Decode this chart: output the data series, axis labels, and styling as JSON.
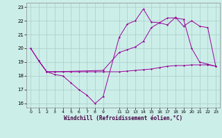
{
  "title": "",
  "xlabel": "Windchill (Refroidissement éolien,°C)",
  "bg_color": "#cceee8",
  "grid_color": "#aacccc",
  "line_color": "#990099",
  "xlim": [
    -0.5,
    23.5
  ],
  "ylim": [
    15.7,
    23.3
  ],
  "yticks": [
    16,
    17,
    18,
    19,
    20,
    21,
    22,
    23
  ],
  "xticks": [
    0,
    1,
    2,
    3,
    4,
    5,
    6,
    7,
    8,
    9,
    11,
    12,
    13,
    14,
    15,
    16,
    17,
    18,
    19,
    20,
    21,
    22,
    23
  ],
  "xticklabels": [
    "0",
    "1",
    "2",
    "3",
    "4",
    "5",
    "6",
    "7",
    "8",
    "9",
    "11",
    "12",
    "13",
    "14",
    "15",
    "16",
    "17",
    "18",
    "19",
    "20",
    "21",
    "22",
    "23"
  ],
  "line1_x": [
    0,
    1,
    2,
    3,
    4,
    5,
    6,
    7,
    8,
    9,
    11,
    12,
    13,
    14,
    15,
    16,
    17,
    18,
    19,
    20,
    21,
    22,
    23
  ],
  "line1_y": [
    20.0,
    19.1,
    18.3,
    18.1,
    18.0,
    17.5,
    17.0,
    16.6,
    16.0,
    16.5,
    20.8,
    21.75,
    22.0,
    22.85,
    21.9,
    21.85,
    22.2,
    22.2,
    22.1,
    20.0,
    19.0,
    18.85,
    18.7
  ],
  "line2_x": [
    0,
    1,
    2,
    3,
    9,
    11,
    12,
    13,
    14,
    15,
    16,
    17,
    18,
    19,
    20,
    21,
    22,
    23
  ],
  "line2_y": [
    20.0,
    19.1,
    18.3,
    18.3,
    18.4,
    19.7,
    19.9,
    20.1,
    20.5,
    21.5,
    21.85,
    21.7,
    22.25,
    21.6,
    22.0,
    21.6,
    21.5,
    18.7
  ],
  "line3_x": [
    1,
    2,
    3,
    4,
    5,
    6,
    7,
    8,
    9,
    11,
    12,
    13,
    14,
    15,
    16,
    17,
    18,
    19,
    20,
    21,
    22,
    23
  ],
  "line3_y": [
    19.1,
    18.3,
    18.3,
    18.3,
    18.3,
    18.3,
    18.3,
    18.3,
    18.3,
    18.3,
    18.35,
    18.4,
    18.45,
    18.5,
    18.6,
    18.7,
    18.75,
    18.75,
    18.8,
    18.8,
    18.8,
    18.7
  ]
}
